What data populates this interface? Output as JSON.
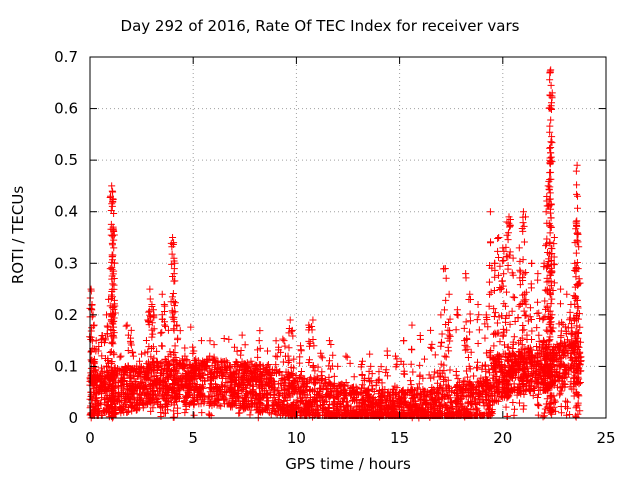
{
  "chart_data": {
    "type": "scatter",
    "title": "Day 292 of 2016, Rate Of TEC Index for receiver vars",
    "xlabel": "GPS time / hours",
    "ylabel": "ROTI / TECUs",
    "xlim": [
      0,
      25
    ],
    "ylim": [
      0,
      0.7
    ],
    "xticks": [
      0,
      5,
      10,
      15,
      20,
      25
    ],
    "yticks": [
      0,
      0.1,
      0.2,
      0.3,
      0.4,
      0.5,
      0.6,
      0.7
    ],
    "grid": true,
    "marker": "+",
    "series_color": "#ff0000",
    "series": [
      {
        "name": "ROTI",
        "points": [
          [
            0.05,
            0.25
          ],
          [
            0.1,
            0.22
          ],
          [
            0.15,
            0.2
          ],
          [
            0.2,
            0.18
          ],
          [
            0.3,
            0.15
          ],
          [
            0.4,
            0.13
          ],
          [
            0.6,
            0.16
          ],
          [
            0.8,
            0.2
          ],
          [
            0.9,
            0.23
          ],
          [
            1.05,
            0.45
          ],
          [
            1.08,
            0.44
          ],
          [
            1.1,
            0.42
          ],
          [
            1.12,
            0.37
          ],
          [
            1.15,
            0.33
          ],
          [
            1.18,
            0.3
          ],
          [
            1.1,
            0.26
          ],
          [
            1.5,
            0.12
          ],
          [
            1.8,
            0.18
          ],
          [
            2.0,
            0.17
          ],
          [
            2.4,
            0.11
          ],
          [
            2.8,
            0.19
          ],
          [
            2.9,
            0.25
          ],
          [
            3.0,
            0.22
          ],
          [
            3.1,
            0.2
          ],
          [
            3.5,
            0.24
          ],
          [
            3.6,
            0.22
          ],
          [
            3.8,
            0.17
          ],
          [
            4.0,
            0.35
          ],
          [
            4.05,
            0.34
          ],
          [
            4.1,
            0.3
          ],
          [
            4.2,
            0.18
          ],
          [
            4.6,
            0.12
          ],
          [
            5.0,
            0.1
          ],
          [
            5.4,
            0.15
          ],
          [
            5.8,
            0.12
          ],
          [
            6.2,
            0.11
          ],
          [
            6.8,
            0.1
          ],
          [
            7.2,
            0.08
          ],
          [
            7.5,
            0.09
          ],
          [
            7.8,
            0.11
          ],
          [
            8.2,
            0.15
          ],
          [
            8.6,
            0.13
          ],
          [
            9.0,
            0.12
          ],
          [
            9.4,
            0.15
          ],
          [
            9.7,
            0.19
          ],
          [
            9.8,
            0.17
          ],
          [
            10.2,
            0.14
          ],
          [
            10.6,
            0.18
          ],
          [
            10.8,
            0.19
          ],
          [
            11.2,
            0.12
          ],
          [
            11.6,
            0.15
          ],
          [
            12.0,
            0.1
          ],
          [
            12.4,
            0.12
          ],
          [
            12.8,
            0.08
          ],
          [
            13.2,
            0.11
          ],
          [
            13.6,
            0.1
          ],
          [
            14.0,
            0.09
          ],
          [
            14.4,
            0.13
          ],
          [
            14.8,
            0.12
          ],
          [
            15.2,
            0.15
          ],
          [
            15.6,
            0.18
          ],
          [
            16.0,
            0.16
          ],
          [
            16.5,
            0.17
          ],
          [
            17.0,
            0.2
          ],
          [
            17.2,
            0.29
          ],
          [
            17.4,
            0.24
          ],
          [
            17.8,
            0.21
          ],
          [
            18.2,
            0.28
          ],
          [
            18.4,
            0.24
          ],
          [
            18.8,
            0.22
          ],
          [
            19.2,
            0.2
          ],
          [
            19.4,
            0.4
          ],
          [
            19.6,
            0.3
          ],
          [
            19.8,
            0.35
          ],
          [
            20.0,
            0.33
          ],
          [
            20.2,
            0.38
          ],
          [
            20.3,
            0.39
          ],
          [
            20.5,
            0.31
          ],
          [
            20.8,
            0.33
          ],
          [
            21.0,
            0.4
          ],
          [
            21.1,
            0.39
          ],
          [
            21.4,
            0.3
          ],
          [
            21.7,
            0.28
          ],
          [
            22.0,
            0.3
          ],
          [
            22.1,
            0.4
          ],
          [
            22.2,
            0.45
          ],
          [
            22.3,
            0.67
          ],
          [
            22.32,
            0.675
          ],
          [
            22.34,
            0.645
          ],
          [
            22.3,
            0.625
          ],
          [
            22.5,
            0.35
          ],
          [
            22.8,
            0.25
          ],
          [
            23.1,
            0.24
          ],
          [
            23.3,
            0.22
          ],
          [
            23.5,
            0.34
          ],
          [
            23.55,
            0.38
          ],
          [
            23.6,
            0.49
          ],
          [
            23.62,
            0.43
          ],
          [
            23.7,
            0.27
          ]
        ]
      }
    ]
  }
}
